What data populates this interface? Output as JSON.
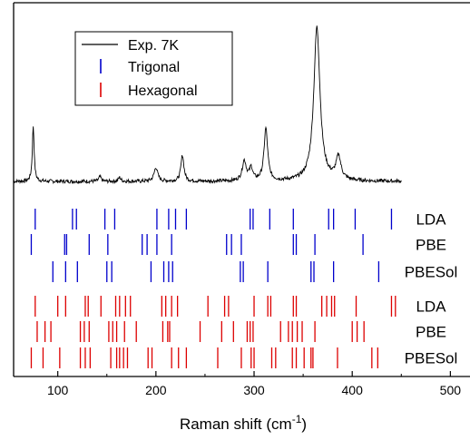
{
  "chart_data": {
    "type": "line",
    "xlabel": "Raman shift (cm",
    "xlabel_sup": "-1",
    "xlabel_end": ")",
    "xlim": [
      55,
      520
    ],
    "xticks": [
      100,
      200,
      300,
      400,
      500
    ],
    "grid": false,
    "legend": {
      "placement": "top-left",
      "entries": [
        {
          "label": "Exp. 7K",
          "color": "#000000",
          "style": "line"
        },
        {
          "label": "Trigonal",
          "color": "#0000cc",
          "style": "tick"
        },
        {
          "label": "Hexagonal",
          "color": "#dd0000",
          "style": "tick"
        }
      ]
    },
    "spectrum": {
      "name": "Exp. 7K",
      "color": "#000000",
      "x_range": [
        55,
        450
      ],
      "baseline": 0.0,
      "noise_amplitude": 0.012,
      "peaks": [
        {
          "x": 75,
          "height": 0.36,
          "width": 1.1
        },
        {
          "x": 143,
          "height": 0.03,
          "width": 1.5
        },
        {
          "x": 163,
          "height": 0.025,
          "width": 1.5
        },
        {
          "x": 200,
          "height": 0.09,
          "width": 2.2
        },
        {
          "x": 227,
          "height": 0.17,
          "width": 1.8
        },
        {
          "x": 290,
          "height": 0.13,
          "width": 2.5
        },
        {
          "x": 297,
          "height": 0.08,
          "width": 2.0
        },
        {
          "x": 312,
          "height": 0.34,
          "width": 2.2
        },
        {
          "x": 364,
          "height": 1.0,
          "width": 3.8
        },
        {
          "x": 386,
          "height": 0.15,
          "width": 3.0
        }
      ]
    },
    "stick_series": [
      {
        "name": "Trigonal",
        "method": "LDA",
        "color": "#0000cc",
        "positions": [
          77,
          115,
          119,
          148,
          158,
          201,
          213,
          220,
          231,
          296,
          299,
          316,
          340,
          376,
          381,
          403,
          440
        ]
      },
      {
        "name": "Trigonal",
        "method": "PBE",
        "color": "#0000cc",
        "positions": [
          73,
          107,
          109,
          132,
          151,
          186,
          191,
          201,
          216,
          272,
          277,
          287,
          340,
          343,
          362,
          411
        ]
      },
      {
        "name": "Trigonal",
        "method": "PBESol",
        "color": "#0000cc",
        "positions": [
          95,
          108,
          120,
          150,
          155,
          195,
          208,
          213,
          217,
          286,
          289,
          314,
          358,
          361,
          381,
          427
        ]
      },
      {
        "name": "Hexagonal",
        "method": "LDA",
        "color": "#dd0000",
        "positions": [
          77,
          100,
          108,
          128,
          131,
          144,
          159,
          163,
          169,
          174,
          206,
          210,
          216,
          222,
          253,
          270,
          274,
          300,
          314,
          317,
          340,
          343,
          369,
          374,
          379,
          382,
          404,
          440,
          444
        ]
      },
      {
        "name": "Hexagonal",
        "method": "PBE",
        "color": "#dd0000",
        "positions": [
          79,
          87,
          93,
          123,
          127,
          132,
          152,
          156,
          160,
          168,
          180,
          207,
          212,
          214,
          245,
          267,
          279,
          293,
          296,
          299,
          327,
          335,
          339,
          344,
          349,
          362,
          400,
          405,
          412
        ]
      },
      {
        "name": "Hexagonal",
        "method": "PBESol",
        "color": "#dd0000",
        "positions": [
          73,
          85,
          102,
          123,
          128,
          133,
          154,
          160,
          163,
          167,
          171,
          192,
          196,
          216,
          223,
          231,
          263,
          287,
          297,
          300,
          318,
          322,
          339,
          343,
          351,
          358,
          360,
          385,
          420,
          426
        ]
      }
    ],
    "row_labels": [
      "LDA",
      "PBE",
      "PBESol",
      "LDA",
      "PBE",
      "PBESol"
    ]
  }
}
